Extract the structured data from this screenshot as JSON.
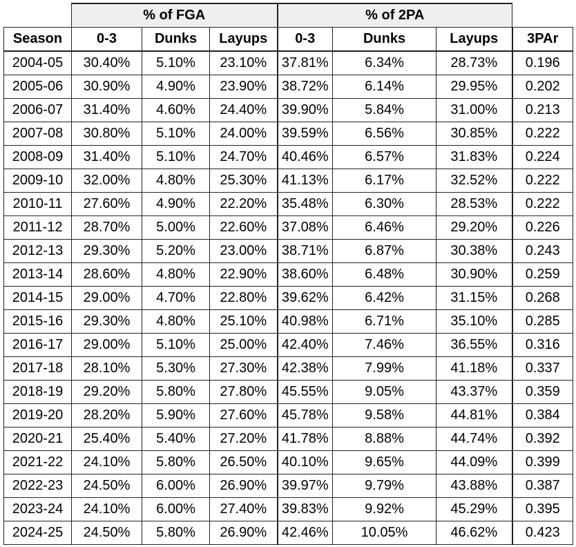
{
  "table": {
    "group_headers": {
      "fga": "% of FGA",
      "twopa": "% of 2PA"
    },
    "columns": [
      "Season",
      "0-3",
      "Dunks",
      "Layups",
      "0-3",
      "Dunks",
      "Layups",
      "3PAr"
    ],
    "rows": [
      [
        "2004-05",
        "30.40%",
        "5.10%",
        "23.10%",
        "37.81%",
        "6.34%",
        "28.73%",
        "0.196"
      ],
      [
        "2005-06",
        "30.90%",
        "4.90%",
        "23.90%",
        "38.72%",
        "6.14%",
        "29.95%",
        "0.202"
      ],
      [
        "2006-07",
        "31.40%",
        "4.60%",
        "24.40%",
        "39.90%",
        "5.84%",
        "31.00%",
        "0.213"
      ],
      [
        "2007-08",
        "30.80%",
        "5.10%",
        "24.00%",
        "39.59%",
        "6.56%",
        "30.85%",
        "0.222"
      ],
      [
        "2008-09",
        "31.40%",
        "5.10%",
        "24.70%",
        "40.46%",
        "6.57%",
        "31.83%",
        "0.224"
      ],
      [
        "2009-10",
        "32.00%",
        "4.80%",
        "25.30%",
        "41.13%",
        "6.17%",
        "32.52%",
        "0.222"
      ],
      [
        "2010-11",
        "27.60%",
        "4.90%",
        "22.20%",
        "35.48%",
        "6.30%",
        "28.53%",
        "0.222"
      ],
      [
        "2011-12",
        "28.70%",
        "5.00%",
        "22.60%",
        "37.08%",
        "6.46%",
        "29.20%",
        "0.226"
      ],
      [
        "2012-13",
        "29.30%",
        "5.20%",
        "23.00%",
        "38.71%",
        "6.87%",
        "30.38%",
        "0.243"
      ],
      [
        "2013-14",
        "28.60%",
        "4.80%",
        "22.90%",
        "38.60%",
        "6.48%",
        "30.90%",
        "0.259"
      ],
      [
        "2014-15",
        "29.00%",
        "4.70%",
        "22.80%",
        "39.62%",
        "6.42%",
        "31.15%",
        "0.268"
      ],
      [
        "2015-16",
        "29.30%",
        "4.80%",
        "25.10%",
        "40.98%",
        "6.71%",
        "35.10%",
        "0.285"
      ],
      [
        "2016-17",
        "29.00%",
        "5.10%",
        "25.00%",
        "42.40%",
        "7.46%",
        "36.55%",
        "0.316"
      ],
      [
        "2017-18",
        "28.10%",
        "5.30%",
        "27.30%",
        "42.38%",
        "7.99%",
        "41.18%",
        "0.337"
      ],
      [
        "2018-19",
        "29.20%",
        "5.80%",
        "27.80%",
        "45.55%",
        "9.05%",
        "43.37%",
        "0.359"
      ],
      [
        "2019-20",
        "28.20%",
        "5.90%",
        "27.60%",
        "45.78%",
        "9.58%",
        "44.81%",
        "0.384"
      ],
      [
        "2020-21",
        "25.40%",
        "5.40%",
        "27.20%",
        "41.78%",
        "8.88%",
        "44.74%",
        "0.392"
      ],
      [
        "2021-22",
        "24.10%",
        "5.80%",
        "26.50%",
        "40.10%",
        "9.65%",
        "44.09%",
        "0.399"
      ],
      [
        "2022-23",
        "24.50%",
        "6.00%",
        "26.90%",
        "39.97%",
        "9.79%",
        "43.88%",
        "0.387"
      ],
      [
        "2023-24",
        "24.10%",
        "6.00%",
        "27.40%",
        "39.83%",
        "9.92%",
        "45.29%",
        "0.395"
      ],
      [
        "2024-25",
        "24.50%",
        "5.80%",
        "26.90%",
        "42.46%",
        "10.05%",
        "46.62%",
        "0.423"
      ]
    ]
  }
}
